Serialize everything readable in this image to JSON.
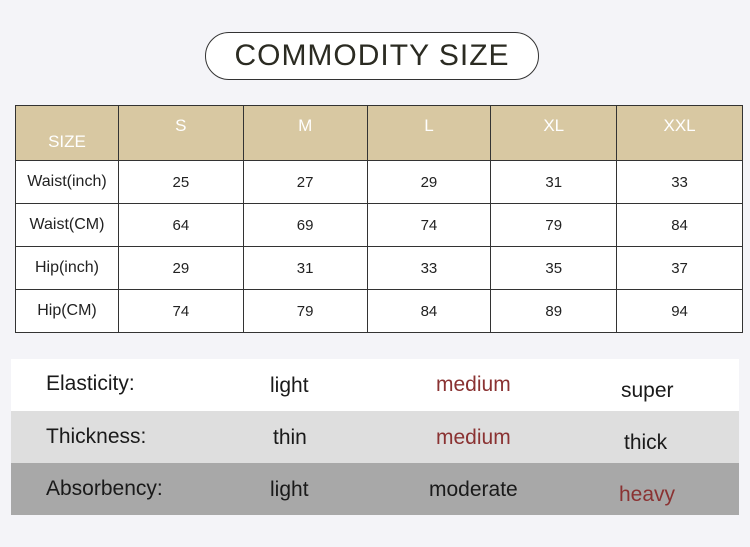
{
  "title": "COMMODITY SIZE",
  "size_table": {
    "header_label": "SIZE",
    "columns": [
      "S",
      "M",
      "L",
      "XL",
      "XXL"
    ],
    "rows": [
      {
        "label": "Waist(inch)",
        "values": [
          "25",
          "27",
          "29",
          "31",
          "33"
        ]
      },
      {
        "label": "Waist(CM)",
        "values": [
          "64",
          "69",
          "74",
          "79",
          "84"
        ]
      },
      {
        "label": "Hip(inch)",
        "values": [
          "29",
          "31",
          "33",
          "35",
          "37"
        ]
      },
      {
        "label": "Hip(CM)",
        "values": [
          "74",
          "79",
          "84",
          "89",
          "94"
        ]
      }
    ]
  },
  "properties": [
    {
      "label": "Elasticity:",
      "options": [
        "light",
        "medium",
        "super"
      ],
      "highlighted": "medium",
      "background": "#ffffff"
    },
    {
      "label": "Thickness:",
      "options": [
        "thin",
        "medium",
        "thick"
      ],
      "highlighted": "medium",
      "background": "#dedede"
    },
    {
      "label": "Absorbency:",
      "options": [
        "light",
        "moderate",
        "heavy"
      ],
      "highlighted": "heavy",
      "background": "#a8a8a8"
    }
  ],
  "colors": {
    "header_bg": "#d8c8a2",
    "highlight_text": "#8a3232"
  }
}
